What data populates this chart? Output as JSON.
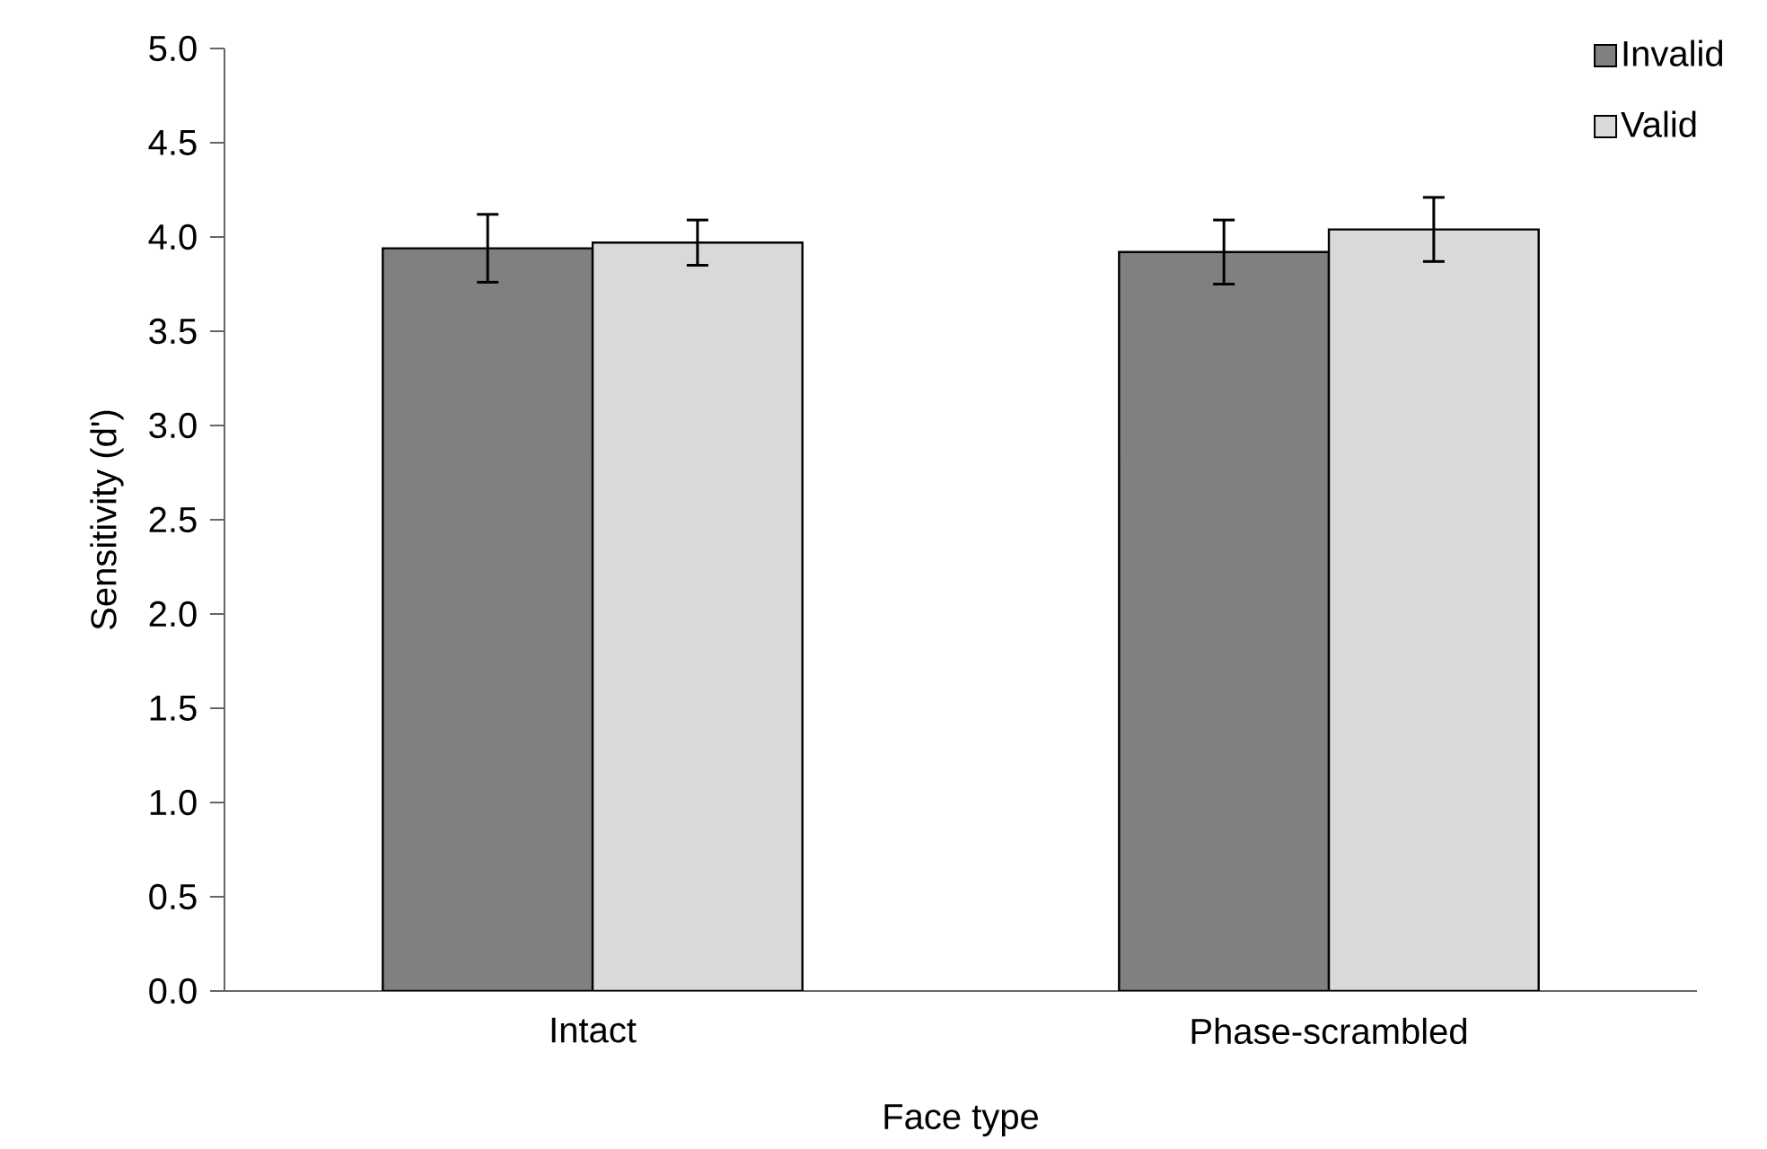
{
  "chart_data": {
    "type": "bar",
    "xlabel": "Face type",
    "ylabel": "Sensitivity (d')",
    "categories": [
      "Intact",
      "Phase-scrambled"
    ],
    "series": [
      {
        "name": "Invalid",
        "color": "#808080",
        "values": [
          3.94,
          3.92
        ],
        "errors": [
          0.18,
          0.17
        ]
      },
      {
        "name": "Valid",
        "color": "#d9d9d9",
        "values": [
          3.97,
          4.04
        ],
        "errors": [
          0.12,
          0.17
        ]
      }
    ],
    "ylim": [
      0,
      5
    ],
    "yticks": [
      {
        "value": 0,
        "label": "0.0"
      },
      {
        "value": 0.5,
        "label": "0.5"
      },
      {
        "value": 1,
        "label": "1.0"
      },
      {
        "value": 1.5,
        "label": "1.5"
      },
      {
        "value": 2,
        "label": "2.0"
      },
      {
        "value": 2.5,
        "label": "2.5"
      },
      {
        "value": 3,
        "label": "3.0"
      },
      {
        "value": 3.5,
        "label": "3.5"
      },
      {
        "value": 4,
        "label": "4.0"
      },
      {
        "value": 4.5,
        "label": "4.5"
      },
      {
        "value": 5,
        "label": "5.0"
      }
    ],
    "legend": "top right"
  }
}
